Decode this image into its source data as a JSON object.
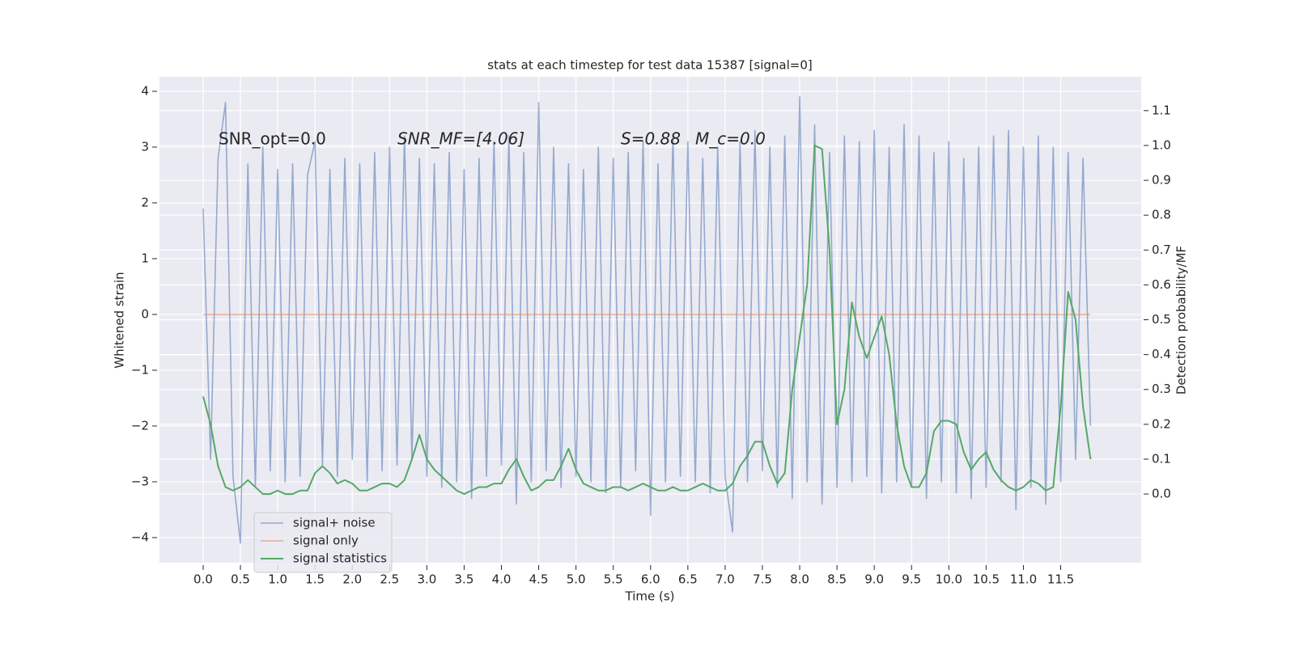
{
  "chart_data": {
    "type": "line",
    "title": "stats at each timestep for test data 15387 [signal=0]",
    "xlabel": "Time (s)",
    "ylabel": "Whitened strain",
    "y2label": "Detection probability/MF",
    "annotations": [
      "SNR_opt=0.0",
      "SNR_MF=[4.06]",
      "S=0.88",
      "M_c=0.0"
    ],
    "x": [
      0.0,
      0.1,
      0.2,
      0.3,
      0.4,
      0.5,
      0.6,
      0.7,
      0.8,
      0.9,
      1.0,
      1.1,
      1.2,
      1.3,
      1.4,
      1.5,
      1.6,
      1.7,
      1.8,
      1.9,
      2.0,
      2.1,
      2.2,
      2.3,
      2.4,
      2.5,
      2.6,
      2.7,
      2.8,
      2.9,
      3.0,
      3.1,
      3.2,
      3.3,
      3.4,
      3.5,
      3.6,
      3.7,
      3.8,
      3.9,
      4.0,
      4.1,
      4.2,
      4.3,
      4.4,
      4.5,
      4.6,
      4.7,
      4.8,
      4.9,
      5.0,
      5.1,
      5.2,
      5.3,
      5.4,
      5.5,
      5.6,
      5.7,
      5.8,
      5.9,
      6.0,
      6.1,
      6.2,
      6.3,
      6.4,
      6.5,
      6.6,
      6.7,
      6.8,
      6.9,
      7.0,
      7.1,
      7.2,
      7.3,
      7.4,
      7.5,
      7.6,
      7.7,
      7.8,
      7.9,
      8.0,
      8.1,
      8.2,
      8.3,
      8.4,
      8.5,
      8.6,
      8.7,
      8.8,
      8.9,
      9.0,
      9.1,
      9.2,
      9.3,
      9.4,
      9.5,
      9.6,
      9.7,
      9.8,
      9.9,
      10.0,
      10.1,
      10.2,
      10.3,
      10.4,
      10.5,
      10.6,
      10.7,
      10.8,
      10.9,
      11.0,
      11.1,
      11.2,
      11.3,
      11.4,
      11.5,
      11.6,
      11.7,
      11.8,
      11.9
    ],
    "series": [
      {
        "name": "signal+ noise",
        "color": "#4c72b0",
        "axis": "y",
        "values": [
          1.9,
          -2.6,
          2.8,
          3.8,
          -2.9,
          -4.1,
          2.7,
          -3.1,
          3.0,
          -2.8,
          2.6,
          -3.0,
          2.7,
          -2.9,
          2.5,
          3.1,
          -2.7,
          2.6,
          -2.9,
          2.8,
          -2.6,
          2.7,
          -3.0,
          2.9,
          -2.8,
          3.0,
          -2.7,
          3.2,
          -2.6,
          2.8,
          -2.9,
          2.7,
          -3.1,
          2.9,
          -3.0,
          2.6,
          -3.3,
          2.8,
          -2.9,
          3.1,
          -2.7,
          3.2,
          -3.4,
          2.9,
          -3.0,
          3.8,
          -2.8,
          3.0,
          -3.1,
          2.7,
          -2.9,
          2.6,
          -3.0,
          3.0,
          -3.2,
          2.8,
          -3.1,
          2.9,
          -2.8,
          3.1,
          -3.6,
          2.7,
          -3.0,
          3.2,
          -2.9,
          3.1,
          -3.0,
          2.8,
          -3.2,
          3.0,
          -2.9,
          -3.9,
          3.1,
          -3.0,
          3.3,
          -2.8,
          3.0,
          -3.1,
          3.2,
          -3.3,
          3.9,
          -3.0,
          3.4,
          -3.4,
          2.9,
          -3.1,
          3.2,
          -3.0,
          3.1,
          -2.9,
          3.3,
          -3.2,
          3.0,
          -3.0,
          3.4,
          -3.1,
          3.2,
          -3.3,
          2.9,
          -3.0,
          3.1,
          -3.2,
          2.8,
          -3.3,
          3.0,
          -3.1,
          3.2,
          -3.0,
          3.3,
          -3.5,
          3.0,
          -3.1,
          3.2,
          -3.4,
          3.0,
          -3.0,
          2.9,
          -2.6,
          2.8,
          -2.0
        ]
      },
      {
        "name": "signal only",
        "color": "#dd8452",
        "axis": "y",
        "values": [
          0,
          0,
          0,
          0,
          0,
          0,
          0,
          0,
          0,
          0,
          0,
          0,
          0,
          0,
          0,
          0,
          0,
          0,
          0,
          0,
          0,
          0,
          0,
          0,
          0,
          0,
          0,
          0,
          0,
          0,
          0,
          0,
          0,
          0,
          0,
          0,
          0,
          0,
          0,
          0,
          0,
          0,
          0,
          0,
          0,
          0,
          0,
          0,
          0,
          0,
          0,
          0,
          0,
          0,
          0,
          0,
          0,
          0,
          0,
          0,
          0,
          0,
          0,
          0,
          0,
          0,
          0,
          0,
          0,
          0,
          0,
          0,
          0,
          0,
          0,
          0,
          0,
          0,
          0,
          0,
          0,
          0,
          0,
          0,
          0,
          0,
          0,
          0,
          0,
          0,
          0,
          0,
          0,
          0,
          0,
          0,
          0,
          0,
          0,
          0,
          0,
          0,
          0,
          0,
          0,
          0,
          0,
          0,
          0,
          0,
          0,
          0,
          0,
          0,
          0,
          0,
          0,
          0,
          0,
          0
        ]
      },
      {
        "name": "signal statistics",
        "color": "#55a868",
        "axis": "y2",
        "values": [
          0.28,
          0.2,
          0.08,
          0.02,
          0.01,
          0.02,
          0.04,
          0.02,
          0.0,
          0.0,
          0.01,
          0.0,
          0.0,
          0.01,
          0.01,
          0.06,
          0.08,
          0.06,
          0.03,
          0.04,
          0.03,
          0.01,
          0.01,
          0.02,
          0.03,
          0.03,
          0.02,
          0.04,
          0.1,
          0.17,
          0.1,
          0.07,
          0.05,
          0.03,
          0.01,
          0.0,
          0.01,
          0.02,
          0.02,
          0.03,
          0.03,
          0.07,
          0.1,
          0.05,
          0.01,
          0.02,
          0.04,
          0.04,
          0.08,
          0.13,
          0.07,
          0.03,
          0.02,
          0.01,
          0.01,
          0.02,
          0.02,
          0.01,
          0.02,
          0.03,
          0.02,
          0.01,
          0.01,
          0.02,
          0.01,
          0.01,
          0.02,
          0.03,
          0.02,
          0.01,
          0.01,
          0.03,
          0.08,
          0.11,
          0.15,
          0.15,
          0.08,
          0.03,
          0.06,
          0.3,
          0.45,
          0.6,
          1.0,
          0.99,
          0.7,
          0.2,
          0.3,
          0.55,
          0.45,
          0.39,
          0.45,
          0.51,
          0.4,
          0.2,
          0.08,
          0.02,
          0.02,
          0.06,
          0.18,
          0.21,
          0.21,
          0.2,
          0.12,
          0.07,
          0.1,
          0.12,
          0.07,
          0.04,
          0.02,
          0.01,
          0.02,
          0.04,
          0.03,
          0.01,
          0.02,
          0.25,
          0.58,
          0.5,
          0.25,
          0.1
        ]
      }
    ],
    "xlim": [
      -0.586,
      12.58
    ],
    "ylim": [
      -4.45,
      4.26
    ],
    "y2lim": [
      -0.197,
      1.197
    ],
    "xticks": [
      {
        "value": 0,
        "label": "0.0"
      },
      {
        "value": 0.5,
        "label": "0.5"
      },
      {
        "value": 1,
        "label": "1.0"
      },
      {
        "value": 1.5,
        "label": "1.5"
      },
      {
        "value": 2,
        "label": "2.0"
      },
      {
        "value": 2.5,
        "label": "2.5"
      },
      {
        "value": 3,
        "label": "3.0"
      },
      {
        "value": 3.5,
        "label": "3.5"
      },
      {
        "value": 4,
        "label": "4.0"
      },
      {
        "value": 4.5,
        "label": "4.5"
      },
      {
        "value": 5,
        "label": "5.0"
      },
      {
        "value": 5.5,
        "label": "5.5"
      },
      {
        "value": 6,
        "label": "6.0"
      },
      {
        "value": 6.5,
        "label": "6.5"
      },
      {
        "value": 7,
        "label": "7.0"
      },
      {
        "value": 7.5,
        "label": "7.5"
      },
      {
        "value": 8,
        "label": "8.0"
      },
      {
        "value": 8.5,
        "label": "8.5"
      },
      {
        "value": 9,
        "label": "9.0"
      },
      {
        "value": 9.5,
        "label": "9.5"
      },
      {
        "value": 10,
        "label": "10.0"
      },
      {
        "value": 10.5,
        "label": "10.5"
      },
      {
        "value": 11,
        "label": "11.0"
      },
      {
        "value": 11.5,
        "label": "11.5"
      }
    ],
    "yticks": [
      {
        "value": -4,
        "label": "−4"
      },
      {
        "value": -3,
        "label": "−3"
      },
      {
        "value": -2,
        "label": "−2"
      },
      {
        "value": -1,
        "label": "−1"
      },
      0,
      1,
      2,
      3,
      4
    ],
    "y2ticks": [
      {
        "value": 0,
        "label": "0.0"
      },
      {
        "value": 0.1,
        "label": "0.1"
      },
      {
        "value": 0.2,
        "label": "0.2"
      },
      {
        "value": 0.3,
        "label": "0.3"
      },
      {
        "value": 0.4,
        "label": "0.4"
      },
      {
        "value": 0.5,
        "label": "0.5"
      },
      {
        "value": 0.6,
        "label": "0.6"
      },
      {
        "value": 0.7,
        "label": "0.7"
      },
      {
        "value": 0.8,
        "label": "0.8"
      },
      {
        "value": 0.9,
        "label": "0.9"
      },
      {
        "value": 1,
        "label": "1.0"
      },
      {
        "value": 1.1,
        "label": "1.1"
      }
    ],
    "grid": true,
    "legend": "lower left"
  }
}
